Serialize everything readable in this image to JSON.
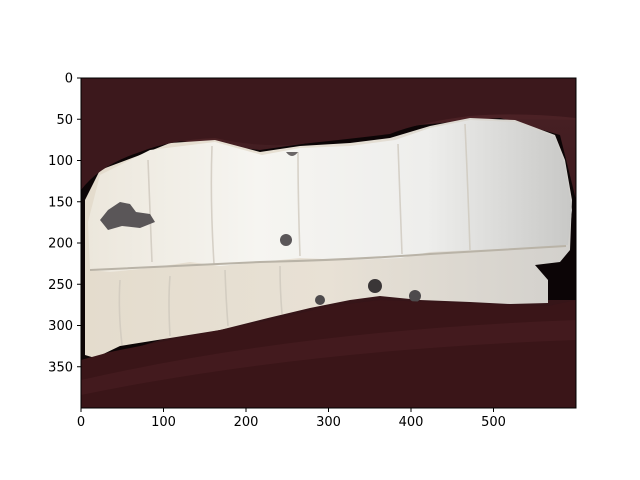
{
  "image": {
    "description_kind": "photo",
    "colors": {
      "lips": "#3f1a1e",
      "lips_highlight": "#5c2a2e",
      "inner_mouth": "#0c0506",
      "teeth_upper": "#f2f0ea",
      "teeth_lower": "#e6ddcf",
      "teeth_right_shade": "#cfcfcc",
      "gum_shadow": "#5a5658",
      "background": "#ffffff",
      "axis": "#000000"
    }
  },
  "axes": {
    "x_range": [
      0,
      600
    ],
    "y_range": [
      400,
      0
    ],
    "x_ticks": [
      {
        "value": 0,
        "label": "0"
      },
      {
        "value": 100,
        "label": "100"
      },
      {
        "value": 200,
        "label": "200"
      },
      {
        "value": 300,
        "label": "300"
      },
      {
        "value": 400,
        "label": "400"
      },
      {
        "value": 500,
        "label": "500"
      }
    ],
    "y_ticks": [
      {
        "value": 0,
        "label": "0"
      },
      {
        "value": 50,
        "label": "50"
      },
      {
        "value": 100,
        "label": "100"
      },
      {
        "value": 150,
        "label": "150"
      },
      {
        "value": 200,
        "label": "200"
      },
      {
        "value": 250,
        "label": "250"
      },
      {
        "value": 300,
        "label": "300"
      },
      {
        "value": 350,
        "label": "350"
      }
    ]
  }
}
